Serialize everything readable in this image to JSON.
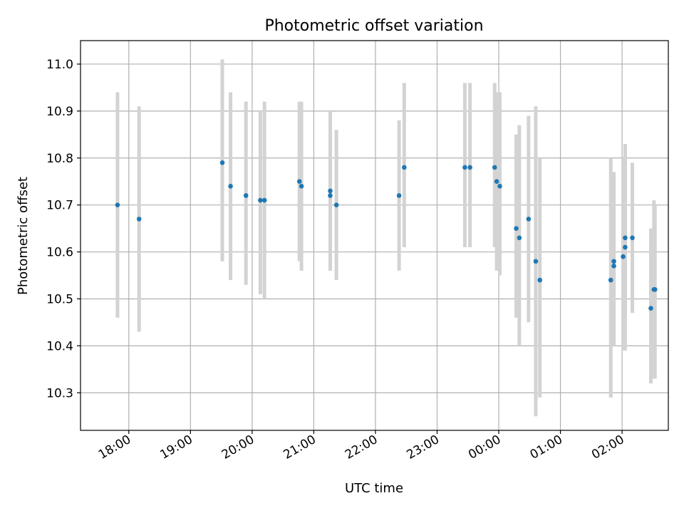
{
  "chart_data": {
    "type": "scatter",
    "title": "Photometric offset variation",
    "xlabel": "UTC time",
    "ylabel": "Photometric offset",
    "grid": true,
    "x_ticks": [
      "18:00",
      "19:00",
      "20:00",
      "21:00",
      "22:00",
      "23:00",
      "00:00",
      "01:00",
      "02:00"
    ],
    "x_tick_minutes": [
      1080,
      1140,
      1200,
      1260,
      1320,
      1380,
      1440,
      1500,
      1560
    ],
    "xlim": [
      "17:13",
      "02:45"
    ],
    "ylim": [
      10.22,
      11.05
    ],
    "y_ticks": [
      10.3,
      10.4,
      10.5,
      10.6,
      10.7,
      10.8,
      10.9,
      11.0
    ],
    "y_tick_labels": [
      "10.3",
      "10.4",
      "10.5",
      "10.6",
      "10.7",
      "10.8",
      "10.9",
      "11.0"
    ],
    "colors": {
      "point": "#1f77b4",
      "errorbar": "#d3d3d3",
      "grid": "#b0b0b0"
    },
    "points": [
      {
        "time": "17:49",
        "y": 10.7,
        "lo": 10.46,
        "hi": 10.94
      },
      {
        "time": "18:10",
        "y": 10.67,
        "lo": 10.43,
        "hi": 10.91
      },
      {
        "time": "19:31",
        "y": 10.79,
        "lo": 10.58,
        "hi": 11.01
      },
      {
        "time": "19:39",
        "y": 10.74,
        "lo": 10.54,
        "hi": 10.94
      },
      {
        "time": "19:54",
        "y": 10.72,
        "lo": 10.53,
        "hi": 10.92
      },
      {
        "time": "20:08",
        "y": 10.71,
        "lo": 10.51,
        "hi": 10.9
      },
      {
        "time": "20:12",
        "y": 10.71,
        "lo": 10.5,
        "hi": 10.92
      },
      {
        "time": "20:46",
        "y": 10.75,
        "lo": 10.58,
        "hi": 10.92
      },
      {
        "time": "20:48",
        "y": 10.74,
        "lo": 10.56,
        "hi": 10.92
      },
      {
        "time": "21:16",
        "y": 10.72,
        "lo": 10.56,
        "hi": 10.86
      },
      {
        "time": "21:16",
        "y": 10.73,
        "lo": 10.56,
        "hi": 10.9
      },
      {
        "time": "21:22",
        "y": 10.7,
        "lo": 10.54,
        "hi": 10.86
      },
      {
        "time": "22:23",
        "y": 10.72,
        "lo": 10.56,
        "hi": 10.88
      },
      {
        "time": "22:28",
        "y": 10.78,
        "lo": 10.61,
        "hi": 10.96
      },
      {
        "time": "23:27",
        "y": 10.78,
        "lo": 10.61,
        "hi": 10.96
      },
      {
        "time": "23:32",
        "y": 10.78,
        "lo": 10.61,
        "hi": 10.96
      },
      {
        "time": "23:56",
        "y": 10.78,
        "lo": 10.61,
        "hi": 10.96
      },
      {
        "time": "23:58",
        "y": 10.75,
        "lo": 10.56,
        "hi": 10.94
      },
      {
        "time": "00:01",
        "y": 10.74,
        "lo": 10.55,
        "hi": 10.94
      },
      {
        "time": "00:17",
        "y": 10.65,
        "lo": 10.46,
        "hi": 10.85
      },
      {
        "time": "00:20",
        "y": 10.63,
        "lo": 10.4,
        "hi": 10.87
      },
      {
        "time": "00:29",
        "y": 10.67,
        "lo": 10.45,
        "hi": 10.89
      },
      {
        "time": "00:36",
        "y": 10.58,
        "lo": 10.25,
        "hi": 10.91
      },
      {
        "time": "00:40",
        "y": 10.54,
        "lo": 10.29,
        "hi": 10.8
      },
      {
        "time": "01:49",
        "y": 10.54,
        "lo": 10.29,
        "hi": 10.8
      },
      {
        "time": "01:52",
        "y": 10.57,
        "lo": 10.4,
        "hi": 10.76
      },
      {
        "time": "01:52",
        "y": 10.58,
        "lo": 10.45,
        "hi": 10.77
      },
      {
        "time": "02:01",
        "y": 10.59,
        "lo": 10.39,
        "hi": 10.8
      },
      {
        "time": "02:03",
        "y": 10.61,
        "lo": 10.39,
        "hi": 10.83
      },
      {
        "time": "02:03",
        "y": 10.63,
        "lo": 10.44,
        "hi": 10.83
      },
      {
        "time": "02:10",
        "y": 10.63,
        "lo": 10.47,
        "hi": 10.79
      },
      {
        "time": "02:28",
        "y": 10.48,
        "lo": 10.32,
        "hi": 10.65
      },
      {
        "time": "02:31",
        "y": 10.52,
        "lo": 10.33,
        "hi": 10.71
      },
      {
        "time": "02:32",
        "y": 10.52,
        "lo": 10.33,
        "hi": 10.7
      }
    ]
  }
}
